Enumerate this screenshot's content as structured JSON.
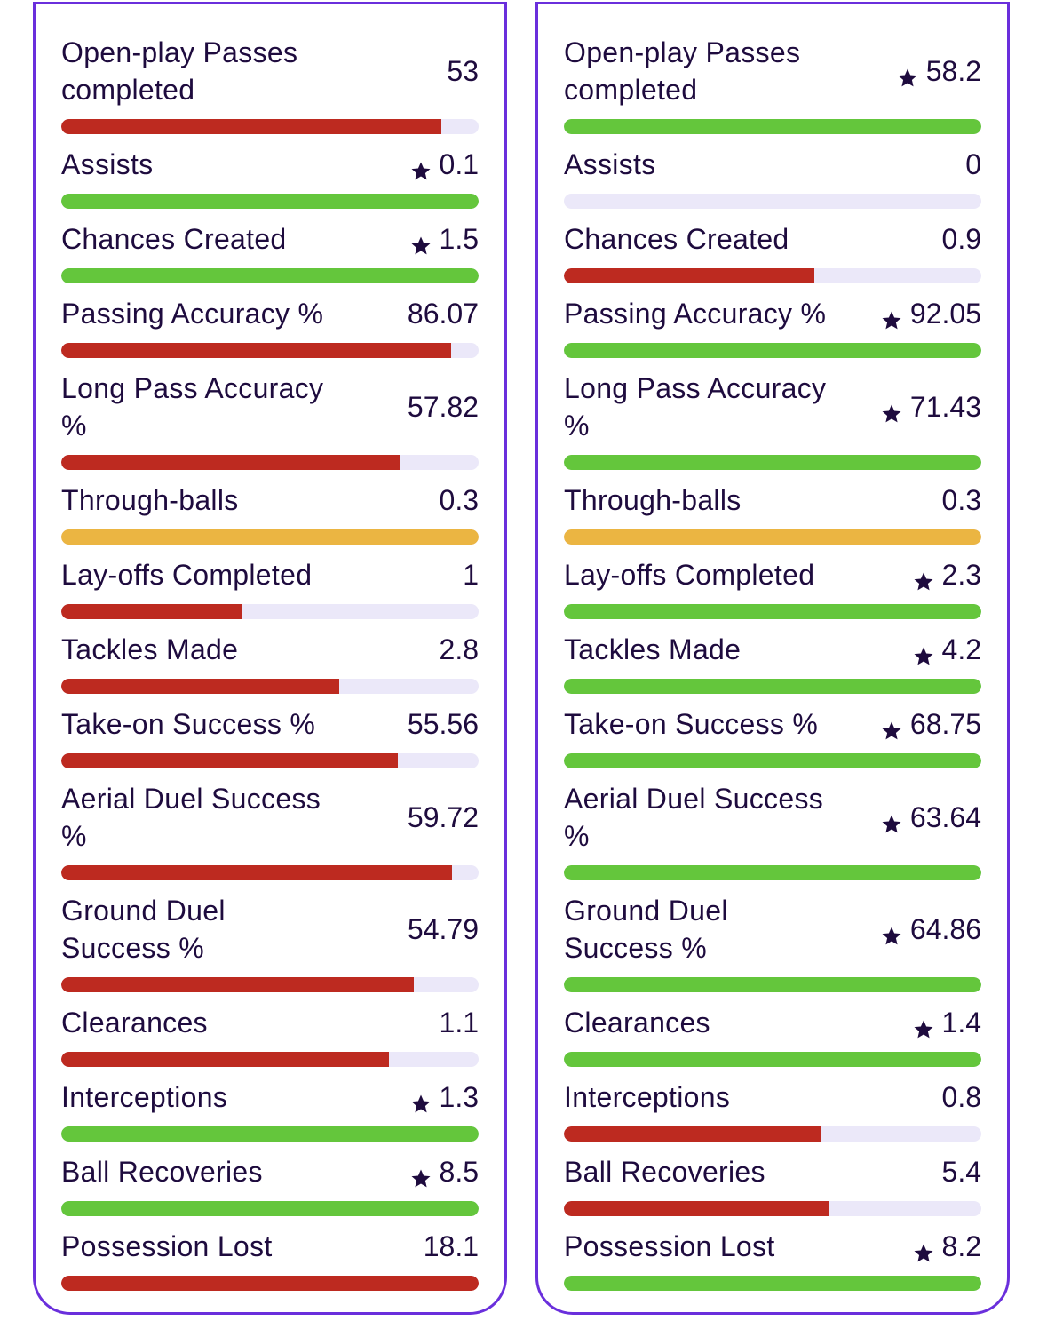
{
  "colors": {
    "worse": "#bd2a20",
    "better": "#64c63c",
    "equal": "#ebb542",
    "track": "#ebe8f9",
    "border": "#6a2fdc",
    "text": "#1e0b3e"
  },
  "cards": [
    {
      "stats": [
        {
          "label": "Open-play Passes completed",
          "value": "53",
          "star": false,
          "status": "worse",
          "fill": 0.91
        },
        {
          "label": "Assists",
          "value": "0.1",
          "star": true,
          "status": "better",
          "fill": 1
        },
        {
          "label": "Chances Created",
          "value": "1.5",
          "star": true,
          "status": "better",
          "fill": 1
        },
        {
          "label": "Passing Accuracy %",
          "value": "86.07",
          "star": false,
          "status": "worse",
          "fill": 0.935
        },
        {
          "label": "Long Pass Accuracy %",
          "value": "57.82",
          "star": false,
          "status": "worse",
          "fill": 0.81
        },
        {
          "label": "Through-balls",
          "value": "0.3",
          "star": false,
          "status": "equal",
          "fill": 1
        },
        {
          "label": "Lay-offs Completed",
          "value": "1",
          "star": false,
          "status": "worse",
          "fill": 0.435
        },
        {
          "label": "Tackles Made",
          "value": "2.8",
          "star": false,
          "status": "worse",
          "fill": 0.667
        },
        {
          "label": "Take-on Success %",
          "value": "55.56",
          "star": false,
          "status": "worse",
          "fill": 0.807
        },
        {
          "label": "Aerial Duel Success %",
          "value": "59.72",
          "star": false,
          "status": "worse",
          "fill": 0.937
        },
        {
          "label": "Ground Duel Success %",
          "value": "54.79",
          "star": false,
          "status": "worse",
          "fill": 0.845
        },
        {
          "label": "Clearances",
          "value": "1.1",
          "star": false,
          "status": "worse",
          "fill": 0.786
        },
        {
          "label": "Interceptions",
          "value": "1.3",
          "star": true,
          "status": "better",
          "fill": 1
        },
        {
          "label": "Ball Recoveries",
          "value": "8.5",
          "star": true,
          "status": "better",
          "fill": 1
        },
        {
          "label": "Possession Lost",
          "value": "18.1",
          "star": false,
          "status": "worse",
          "fill": 1
        }
      ]
    },
    {
      "stats": [
        {
          "label": "Open-play Passes completed",
          "value": "58.2",
          "star": true,
          "status": "better",
          "fill": 1
        },
        {
          "label": "Assists",
          "value": "0",
          "star": false,
          "status": "worse",
          "fill": 0
        },
        {
          "label": "Chances Created",
          "value": "0.9",
          "star": false,
          "status": "worse",
          "fill": 0.6
        },
        {
          "label": "Passing Accuracy %",
          "value": "92.05",
          "star": true,
          "status": "better",
          "fill": 1
        },
        {
          "label": "Long Pass Accuracy %",
          "value": "71.43",
          "star": true,
          "status": "better",
          "fill": 1
        },
        {
          "label": "Through-balls",
          "value": "0.3",
          "star": false,
          "status": "equal",
          "fill": 1
        },
        {
          "label": "Lay-offs Completed",
          "value": "2.3",
          "star": true,
          "status": "better",
          "fill": 1
        },
        {
          "label": "Tackles Made",
          "value": "4.2",
          "star": true,
          "status": "better",
          "fill": 1
        },
        {
          "label": "Take-on Success %",
          "value": "68.75",
          "star": true,
          "status": "better",
          "fill": 1
        },
        {
          "label": "Aerial Duel Success %",
          "value": "63.64",
          "star": true,
          "status": "better",
          "fill": 1
        },
        {
          "label": "Ground Duel Success %",
          "value": "64.86",
          "star": true,
          "status": "better",
          "fill": 1
        },
        {
          "label": "Clearances",
          "value": "1.4",
          "star": true,
          "status": "better",
          "fill": 1
        },
        {
          "label": "Interceptions",
          "value": "0.8",
          "star": false,
          "status": "worse",
          "fill": 0.615
        },
        {
          "label": "Ball Recoveries",
          "value": "5.4",
          "star": false,
          "status": "worse",
          "fill": 0.636
        },
        {
          "label": "Possession Lost",
          "value": "8.2",
          "star": true,
          "status": "better",
          "fill": 1
        }
      ]
    }
  ]
}
